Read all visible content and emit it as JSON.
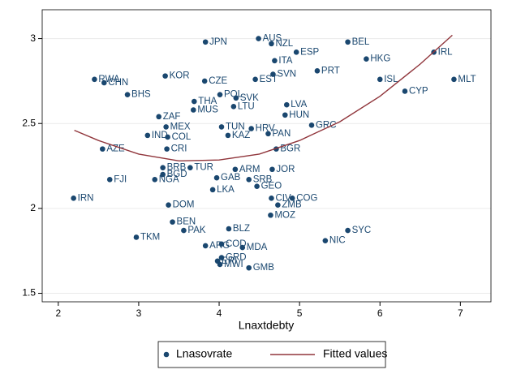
{
  "chart_data": {
    "type": "scatter",
    "x_label": "Lnaxtdebty",
    "xlim": [
      1.8,
      7.38
    ],
    "ylim": [
      1.45,
      3.17
    ],
    "xticks": [
      2,
      3,
      4,
      5,
      6,
      7
    ],
    "yticks": [
      1.5,
      2,
      2.5,
      3
    ],
    "grid": true,
    "legend": "bottom",
    "series": [
      {
        "name": "Lnasovrate",
        "type": "scatter",
        "color": "#1a476f",
        "labels": [
          "JPN",
          "AUS",
          "NZL",
          "BEL",
          "ESP",
          "IRL",
          "HKG",
          "ITA",
          "SVN",
          "PRT",
          "EST",
          "ISL",
          "MLT",
          "CYP",
          "KOR",
          "RWA",
          "CHN",
          "BHS",
          "CZE",
          "POL",
          "SVK",
          "THA",
          "MUS",
          "LTU",
          "LVA",
          "HUN",
          "GRC",
          "ZAF",
          "MEX",
          "TUN",
          "HRV",
          "PAN",
          "KAZ",
          "IND",
          "COL",
          "BGR",
          "AZE",
          "CRI",
          "FJI",
          "NGA",
          "JOR",
          "IRN",
          "COG",
          "ZMB",
          "MOZ",
          "TKM",
          "SYC",
          "NIC",
          "PAK",
          "ARG",
          "COD",
          "MDA",
          "GRD",
          "ERI",
          "MWI",
          "GMB",
          "LKA",
          "DOM",
          "BLZ",
          "BRB",
          "BGD",
          "TUR",
          "ARM",
          "GAB",
          "SRB",
          "GEO",
          "CIV",
          "BEN"
        ],
        "x": [
          3.83,
          4.49,
          4.65,
          5.6,
          4.96,
          6.67,
          5.83,
          4.69,
          4.67,
          5.22,
          4.45,
          6.0,
          6.92,
          6.31,
          3.33,
          2.45,
          2.57,
          2.86,
          3.82,
          4.01,
          4.21,
          3.69,
          3.68,
          4.18,
          4.84,
          4.82,
          5.15,
          3.25,
          3.34,
          4.03,
          4.4,
          4.61,
          4.11,
          3.11,
          3.36,
          4.71,
          2.55,
          3.35,
          2.64,
          3.2,
          4.66,
          2.19,
          4.91,
          4.73,
          4.64,
          2.97,
          5.6,
          5.32,
          3.56,
          3.83,
          4.03,
          4.29,
          4.03,
          3.98,
          4.01,
          4.37,
          3.92,
          3.37,
          4.12,
          3.3,
          3.3,
          3.64,
          4.2,
          3.97,
          4.37,
          4.47,
          4.65,
          3.42
        ],
        "values": [
          2.98,
          3.0,
          2.97,
          2.98,
          2.92,
          2.92,
          2.88,
          2.87,
          2.79,
          2.81,
          2.76,
          2.76,
          2.76,
          2.69,
          2.78,
          2.76,
          2.74,
          2.67,
          2.75,
          2.67,
          2.65,
          2.63,
          2.58,
          2.6,
          2.61,
          2.55,
          2.49,
          2.54,
          2.48,
          2.48,
          2.47,
          2.44,
          2.43,
          2.43,
          2.42,
          2.35,
          2.35,
          2.35,
          2.17,
          2.17,
          2.23,
          2.06,
          2.06,
          2.02,
          1.96,
          1.83,
          1.87,
          1.81,
          1.87,
          1.78,
          1.79,
          1.77,
          1.71,
          1.69,
          1.67,
          1.65,
          2.11,
          2.02,
          1.88,
          2.24,
          2.2,
          2.24,
          2.23,
          2.18,
          2.17,
          2.13,
          2.06,
          1.92
        ]
      },
      {
        "name": "Fitted values",
        "type": "line",
        "color": "#90353b",
        "x": [
          2.2,
          2.5,
          3,
          3.5,
          4,
          4.5,
          5,
          5.5,
          6,
          6.5,
          6.9
        ],
        "values": [
          2.46,
          2.4,
          2.32,
          2.28,
          2.285,
          2.32,
          2.4,
          2.51,
          2.66,
          2.85,
          3.02
        ]
      }
    ]
  }
}
